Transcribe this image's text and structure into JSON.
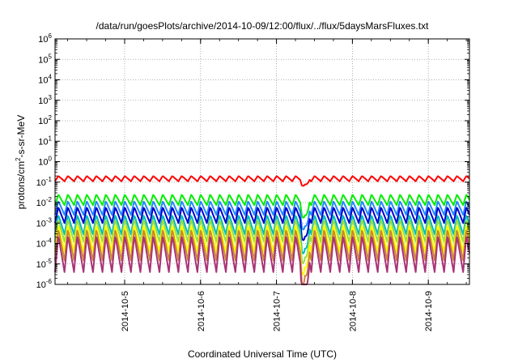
{
  "chart_data": {
    "type": "line",
    "title": "/data/run/goesPlots/archive/2014-10-09/12:00/flux/../flux/5daysMarsFluxes.txt",
    "xlabel": "Coordinated Universal Time (UTC)",
    "ylabel_parts": [
      "protons/cm",
      "2",
      "-s-sr-MeV"
    ],
    "y_scale": "log",
    "y_ticks": [
      {
        "base": "10",
        "exp": "-6",
        "value": 1e-06
      },
      {
        "base": "10",
        "exp": "-5",
        "value": 1e-05
      },
      {
        "base": "10",
        "exp": "-4",
        "value": 0.0001
      },
      {
        "base": "10",
        "exp": "-3",
        "value": 0.001
      },
      {
        "base": "10",
        "exp": "-2",
        "value": 0.01
      },
      {
        "base": "10",
        "exp": "-1",
        "value": 0.1
      },
      {
        "base": "10",
        "exp": "0",
        "value": 1
      },
      {
        "base": "10",
        "exp": "1",
        "value": 10.0
      },
      {
        "base": "10",
        "exp": "2",
        "value": 100.0
      },
      {
        "base": "10",
        "exp": "3",
        "value": 1000.0
      },
      {
        "base": "10",
        "exp": "4",
        "value": 10000.0
      },
      {
        "base": "10",
        "exp": "5",
        "value": 100000.0
      },
      {
        "base": "10",
        "exp": "6",
        "value": 1000000.0
      }
    ],
    "ylim": [
      1e-06,
      1000000.0
    ],
    "x_ticks": [
      "2014-10-5",
      "2014-10-6",
      "2014-10-7",
      "2014-10-8",
      "2014-10-9"
    ],
    "xlim": [
      "2014-10-04T02:00",
      "2014-10-09T13:00"
    ],
    "grid": true,
    "sawtooth_period_hours": 3,
    "dip": {
      "start": "2014-10-07T07:30",
      "end": "2014-10-07T10:30"
    },
    "series": [
      {
        "color": "#ff0000",
        "peak": 0.2,
        "trough": 0.11
      },
      {
        "color": "#00ee00",
        "peak": 0.025,
        "trough": 0.0075
      },
      {
        "color": "#2288ff",
        "peak": 0.012,
        "trough": 0.0025
      },
      {
        "color": "#0000cc",
        "peak": 0.006,
        "trough": 0.001
      },
      {
        "color": "#00bbbb",
        "peak": 0.0025,
        "trough": 0.00028
      },
      {
        "color": "#99dd44",
        "peak": 0.0015,
        "trough": 0.00012
      },
      {
        "color": "#ffff00",
        "peak": 0.0008,
        "trough": 4e-05
      },
      {
        "color": "#cc8833",
        "peak": 0.0005,
        "trough": 1.5e-05
      },
      {
        "color": "#aa3377",
        "peak": 0.00025,
        "trough": 4e-06
      }
    ]
  }
}
